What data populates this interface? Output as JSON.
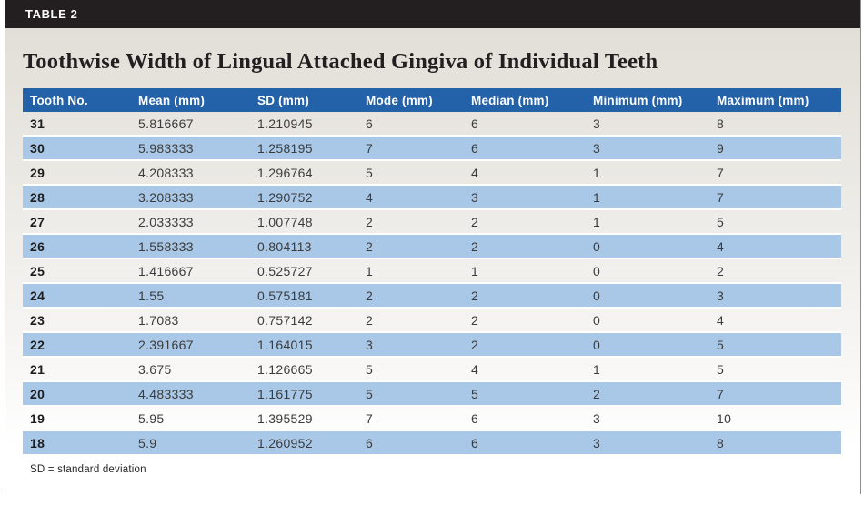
{
  "header": {
    "table_label": "TABLE 2"
  },
  "title": "Toothwise Width of Lingual Attached Gingiva of Individual Teeth",
  "footnote": "SD = standard deviation",
  "colors": {
    "header_bar": "#231f20",
    "table_header_blue": "#2361a8",
    "row_alt_blue": "#a9c8e8",
    "content_background_top": "#e2dfd8",
    "border_gray": "#8f8f8f"
  },
  "chart_data": {
    "type": "table",
    "title": "Toothwise Width of Lingual Attached Gingiva of Individual Teeth",
    "columns": [
      "Tooth No.",
      "Mean (mm)",
      "SD (mm)",
      "Mode (mm)",
      "Median (mm)",
      "Minimum (mm)",
      "Maximum (mm)"
    ],
    "rows": [
      [
        "31",
        "5.816667",
        "1.210945",
        "6",
        "6",
        "3",
        "8"
      ],
      [
        "30",
        "5.983333",
        "1.258195",
        "7",
        "6",
        "3",
        "9"
      ],
      [
        "29",
        "4.208333",
        "1.296764",
        "5",
        "4",
        "1",
        "7"
      ],
      [
        "28",
        "3.208333",
        "1.290752",
        "4",
        "3",
        "1",
        "7"
      ],
      [
        "27",
        "2.033333",
        "1.007748",
        "2",
        "2",
        "1",
        "5"
      ],
      [
        "26",
        "1.558333",
        "0.804113",
        "2",
        "2",
        "0",
        "4"
      ],
      [
        "25",
        "1.416667",
        "0.525727",
        "1",
        "1",
        "0",
        "2"
      ],
      [
        "24",
        "1.55",
        "0.575181",
        "2",
        "2",
        "0",
        "3"
      ],
      [
        "23",
        "1.7083",
        "0.757142",
        "2",
        "2",
        "0",
        "4"
      ],
      [
        "22",
        "2.391667",
        "1.164015",
        "3",
        "2",
        "0",
        "5"
      ],
      [
        "21",
        "3.675",
        "1.126665",
        "5",
        "4",
        "1",
        "5"
      ],
      [
        "20",
        "4.483333",
        "1.161775",
        "5",
        "5",
        "2",
        "7"
      ],
      [
        "19",
        "5.95",
        "1.395529",
        "7",
        "6",
        "3",
        "10"
      ],
      [
        "18",
        "5.9",
        "1.260952",
        "6",
        "6",
        "3",
        "8"
      ]
    ]
  }
}
